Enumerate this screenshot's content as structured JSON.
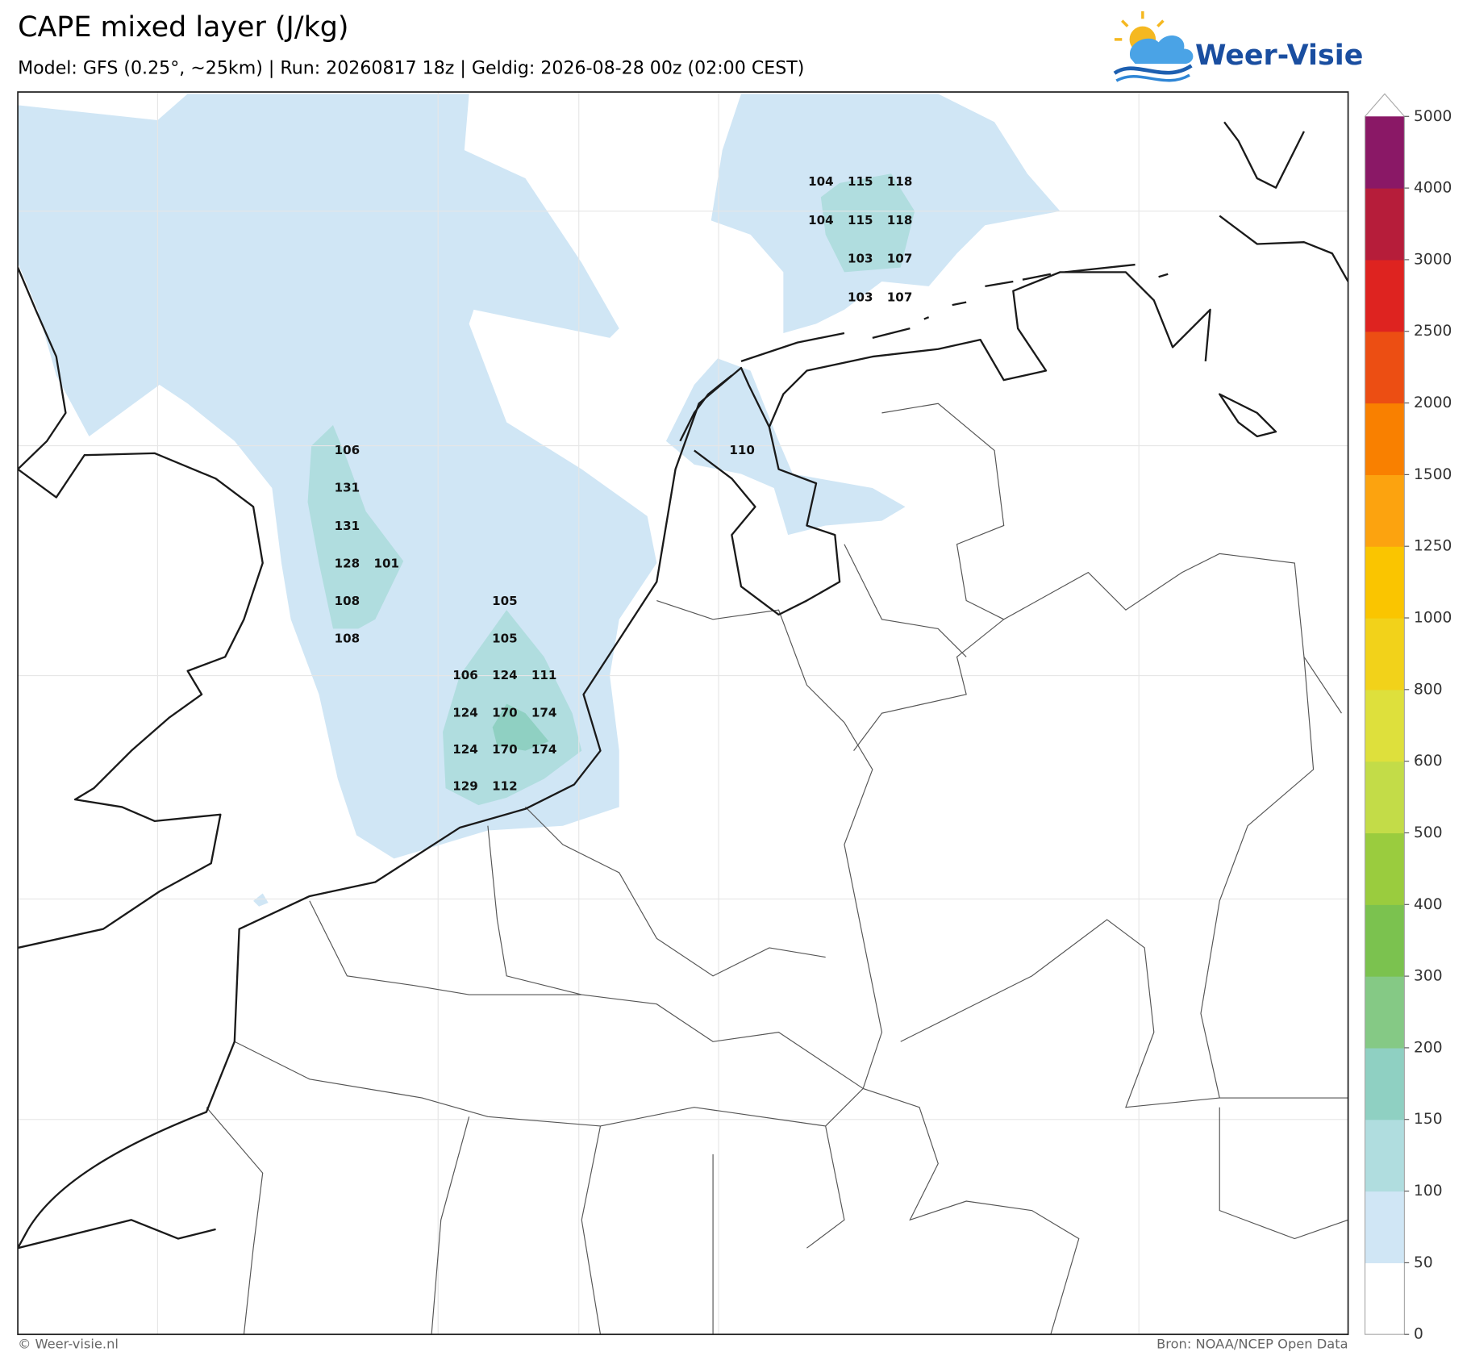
{
  "header": {
    "title": "CAPE mixed layer (J/kg)",
    "subtitle": "Model: GFS (0.25°, ~25km)  |  Run: 20260817 18z  |  Geldig: 2026-08-28 00z (02:00 CEST)",
    "logo": "Weer-Visie"
  },
  "map": {
    "labels": [
      104,
      115,
      118,
      104,
      115,
      118,
      103,
      107,
      103,
      107,
      106,
      131,
      131,
      128,
      101,
      108,
      108,
      110,
      105,
      105,
      106,
      124,
      111,
      124,
      170,
      174,
      124,
      170,
      174,
      129,
      112
    ]
  },
  "colorbar": {
    "levels": [
      0,
      50,
      100,
      150,
      200,
      300,
      400,
      500,
      600,
      800,
      1000,
      1250,
      1500,
      2000,
      2500,
      3000,
      4000,
      5000
    ],
    "colors": [
      "#ffffff",
      "#d0e6f5",
      "#b0dddf",
      "#8fd0c2",
      "#85c985",
      "#7bc24f",
      "#9acc3e",
      "#c3dc48",
      "#dee03c",
      "#f2d21a",
      "#fac500",
      "#fca30f",
      "#f98000",
      "#ec4e13",
      "#de2320",
      "#b61d3a",
      "#8a1866"
    ]
  },
  "footer": {
    "left": "© Weer-visie.nl",
    "right": "Bron: NOAA/NCEP Open Data"
  }
}
